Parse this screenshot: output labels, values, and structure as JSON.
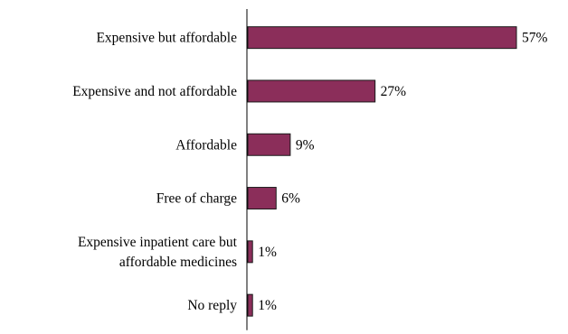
{
  "chart_data": {
    "type": "bar",
    "orientation": "horizontal",
    "title": "",
    "xlabel": "",
    "ylabel": "",
    "categories": [
      [
        "Expensive but affordable"
      ],
      [
        "Expensive and not affordable"
      ],
      [
        "Affordable"
      ],
      [
        "Free of charge"
      ],
      [
        "Expensive inpatient care but",
        "affordable medicines"
      ],
      [
        "No reply"
      ]
    ],
    "values": [
      57,
      27,
      9,
      6,
      1,
      1
    ],
    "value_labels": [
      "57%",
      "27%",
      "9%",
      "6%",
      "1%",
      "1%"
    ],
    "xlim": [
      0,
      60
    ],
    "grid": false,
    "legend": "none",
    "bar_color": "#8b2e5a",
    "bar_edge_color": "#1a1a1a"
  }
}
